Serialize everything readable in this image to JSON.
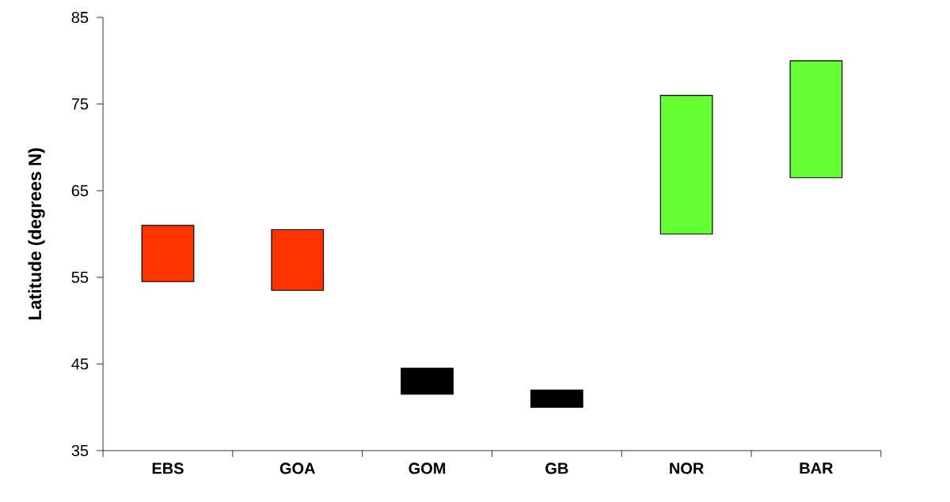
{
  "chart_data": {
    "type": "bar",
    "ylabel": "Latitude (degrees N)",
    "categories": [
      "EBS",
      "GOA",
      "GOM",
      "GB",
      "NOR",
      "BAR"
    ],
    "base": [
      54.5,
      53.5,
      41.5,
      40,
      60,
      66.5
    ],
    "values": [
      6.5,
      7,
      3,
      2,
      16,
      13.5
    ],
    "colors": [
      "#ff3300",
      "#ff3300",
      "#000000",
      "#000000",
      "#66ff33",
      "#66ff33"
    ],
    "ylim": [
      35,
      85
    ],
    "yticks": [
      35,
      45,
      55,
      65,
      75,
      85
    ]
  }
}
